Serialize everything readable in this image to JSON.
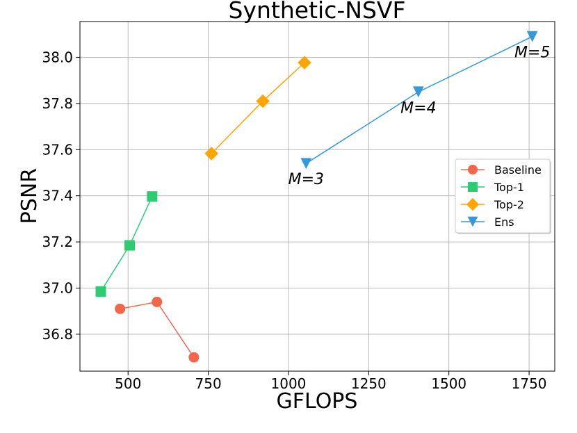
{
  "chart_data": {
    "type": "line",
    "title": "Synthetic-NSVF",
    "xlabel": "GFLOPS",
    "ylabel": "PSNR",
    "xlim": [
      350,
      1830
    ],
    "ylim": [
      36.64,
      38.155
    ],
    "xticks": [
      500,
      750,
      1000,
      1250,
      1500,
      1750
    ],
    "xtick_labels": [
      "500",
      "750",
      "1000",
      "1250",
      "1500",
      "1750"
    ],
    "yticks": [
      36.8,
      37.0,
      37.2,
      37.4,
      37.6,
      37.8,
      38.0
    ],
    "ytick_labels": [
      "36.8",
      "37.0",
      "37.2",
      "37.4",
      "37.6",
      "37.8",
      "38.0"
    ],
    "grid": true,
    "legend_position": "center-right",
    "series": [
      {
        "name": "Baseline",
        "marker": "circle",
        "color": "#f4664a",
        "x": [
          475,
          590,
          705
        ],
        "y": [
          36.91,
          36.94,
          36.7
        ]
      },
      {
        "name": "Top-1",
        "marker": "square",
        "color": "#2ecc71",
        "x": [
          415,
          505,
          575
        ],
        "y": [
          36.985,
          37.185,
          37.397
        ]
      },
      {
        "name": "Top-2",
        "marker": "diamond",
        "color": "#ffa500",
        "x": [
          760,
          920,
          1050
        ],
        "y": [
          37.583,
          37.81,
          37.977
        ]
      },
      {
        "name": "Ens",
        "marker": "triangle-down",
        "color": "#3498db",
        "x": [
          1055,
          1405,
          1760
        ],
        "y": [
          37.54,
          37.85,
          38.09
        ]
      }
    ],
    "annotations": [
      {
        "text": "M=3",
        "x": 1055,
        "y": 37.54
      },
      {
        "text": "M=4",
        "x": 1405,
        "y": 37.85
      },
      {
        "text": "M=5",
        "x": 1760,
        "y": 38.09
      }
    ]
  }
}
